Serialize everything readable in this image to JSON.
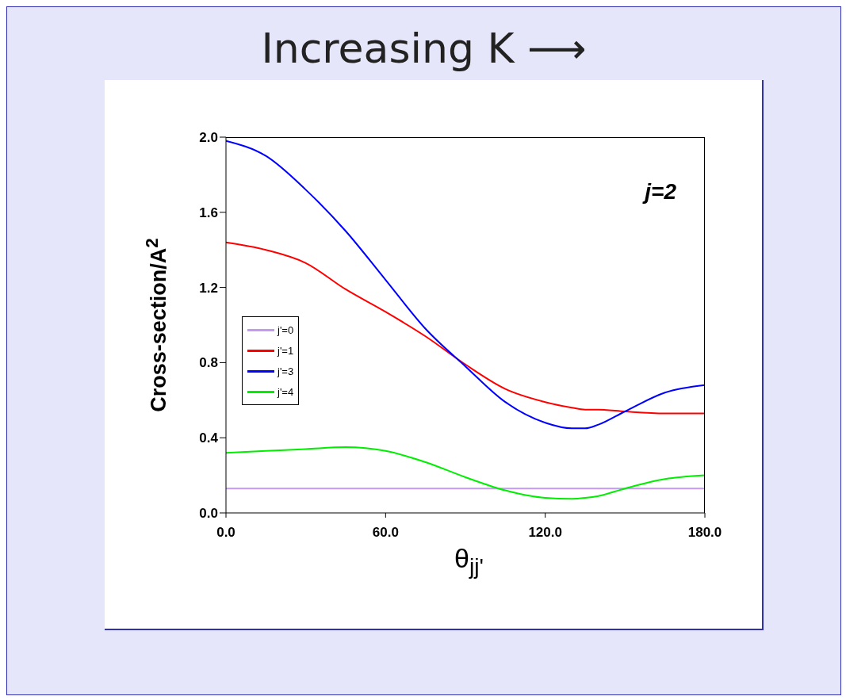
{
  "chart_data": {
    "type": "line",
    "title": "Increasing K ⟶",
    "xlabel": "θ$_{jj'}$",
    "ylabel": "Cross-section/A$^{2}$",
    "annotations": [
      "j=2"
    ],
    "x": [
      0,
      15,
      30,
      45,
      60,
      75,
      90,
      105,
      120,
      130,
      135,
      140,
      150,
      165,
      180
    ],
    "series": [
      {
        "name": "j'=0",
        "color": "#c499f0",
        "values": [
          0.13,
          0.13,
          0.13,
          0.13,
          0.13,
          0.13,
          0.13,
          0.13,
          0.13,
          0.13,
          0.13,
          0.13,
          0.13,
          0.13,
          0.13
        ]
      },
      {
        "name": "j'=1",
        "color": "#ff0000",
        "values": [
          1.44,
          1.4,
          1.33,
          1.19,
          1.07,
          0.94,
          0.79,
          0.66,
          0.59,
          0.56,
          0.55,
          0.55,
          0.54,
          0.53,
          0.53
        ]
      },
      {
        "name": "j'=3",
        "color": "#0000ff",
        "values": [
          1.98,
          1.9,
          1.72,
          1.5,
          1.24,
          0.98,
          0.78,
          0.59,
          0.48,
          0.45,
          0.45,
          0.47,
          0.54,
          0.64,
          0.68
        ]
      },
      {
        "name": "j'=4",
        "color": "#00ee00",
        "values": [
          0.32,
          0.33,
          0.34,
          0.35,
          0.33,
          0.27,
          0.19,
          0.12,
          0.08,
          0.075,
          0.08,
          0.09,
          0.13,
          0.18,
          0.2
        ]
      }
    ],
    "xlim": [
      0,
      180
    ],
    "xticks": [
      {
        "value": 0,
        "label": "0.0"
      },
      {
        "value": 60,
        "label": "60.0"
      },
      {
        "value": 120,
        "label": "120.0"
      },
      {
        "value": 180,
        "label": "180.0"
      }
    ],
    "ylim": [
      0,
      2
    ],
    "yticks": [
      {
        "value": 0,
        "label": "0.0"
      },
      {
        "value": 0.4,
        "label": "0.4"
      },
      {
        "value": 0.8,
        "label": "0.8"
      },
      {
        "value": 1.2,
        "label": "1.2"
      },
      {
        "value": 1.6,
        "label": "1.6"
      },
      {
        "value": 2,
        "label": "2.0"
      }
    ],
    "legend": "left",
    "marker": "none",
    "line_style": "solid",
    "grid": false
  }
}
